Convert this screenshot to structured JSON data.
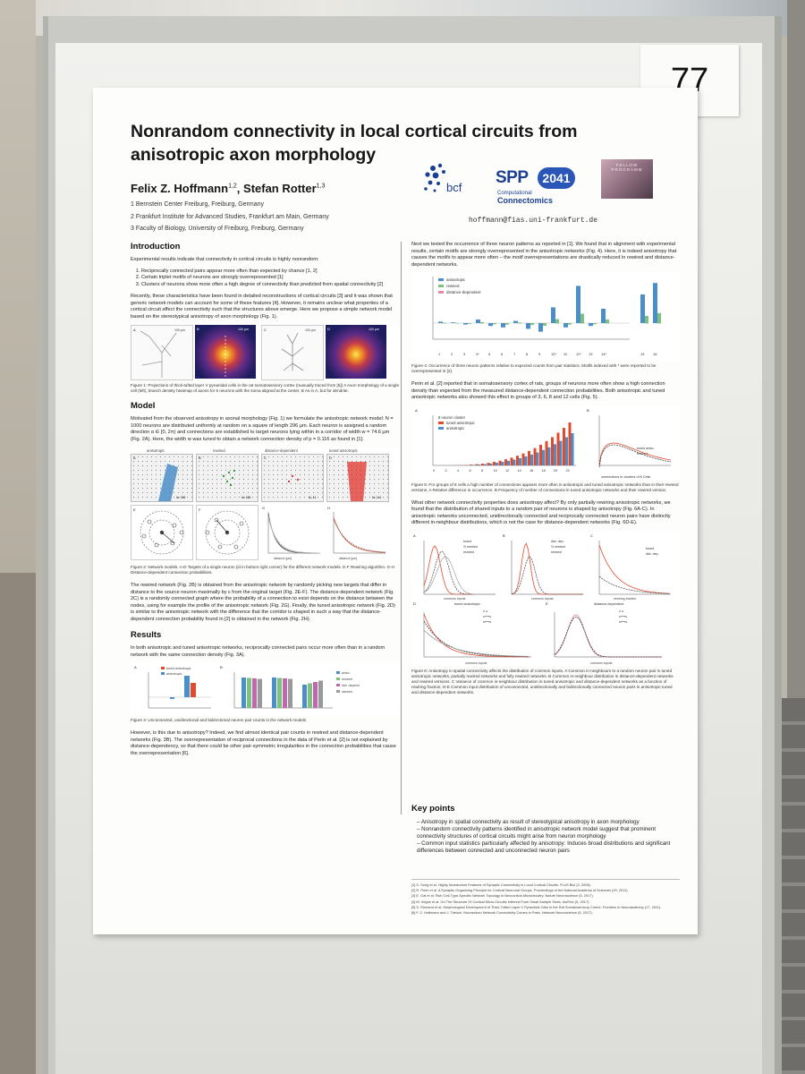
{
  "booth_number": "77",
  "poster": {
    "title": "Nonrandom connectivity in local cortical circuits from anisotropic axon morphology",
    "authors": "Felix Z. Hoffmann",
    "authors_sup1": "1,2",
    "authors_sep": ", Stefan Rotter",
    "authors_sup2": "1,3",
    "affiliations": [
      "1 Bernstein Center Freiburg, Freiburg, Germany",
      "2 Frankfurt Institute for Advanced Studies, Frankfurt am Main, Germany",
      "3 Faculty of Biology, University of Freiburg, Freiburg, Germany"
    ],
    "email": "hoffmann@fias.uni-frankfurt.de",
    "logos": {
      "bcf": "bcf",
      "spp_mark": "SPP",
      "spp_year": "2041",
      "spp_sub1": "Computational",
      "spp_sub2": "Connectomics",
      "fellow": "FELLOW PROGRAMM"
    }
  },
  "intro": {
    "heading": "Introduction",
    "lead": "Experimental results indicate that connectivity in cortical circuits is highly nonrandom:",
    "items": [
      "Reciprocally connected pairs appear more often than expected by chance [1, 2]",
      "Certain triplet motifs of neurons are strongly overrepresented [1]",
      "Clusters of neurons show more often a high degree of connectivity than predicted from spatial connectivity [2]"
    ],
    "body": "Recently, these characteristics have been found in detailed reconstructions of cortical circuits [3] and it was shown that generic network models can account for some of these features [4]. However, it remains unclear what properties of a cortical circuit affect the connectivity such that the structures above emerge. Here we propose a simple network model based on the stereotypical anisotropy of axon morphology (Fig. 1).",
    "fig1_labels": [
      "A",
      "B",
      "C",
      "D"
    ],
    "fig1_scale": "100 µm",
    "fig1_caption": "Figure 1: Projections of thick-tufted layer V pyramidal cells in the rat somatosensory cortex (manually traced from [5]) A Axon morphology of a single cell (left), branch density heatmap of axons for 5 neurons with the soma aligned at the center. B As in A, but for dendrite."
  },
  "model": {
    "heading": "Model",
    "body": "Motivated from the observed anisotropy in axonal morphology (Fig. 1) we formulate the anisotropic network model: N = 1000 neurons are distributed uniformly at random on a square of length 296 µm. Each neuron is assigned a random direction α ∈ [0, 2π) and connections are established to target neurons lying within in a corridor of width w = 74.6 µm (Fig. 2A). Here, the width w was tuned to obtain a network connection density of p = 0.116 as found in [1].",
    "fig2_titles": [
      "anisotropic",
      "rewired",
      "distance-dependent",
      "tuned anisotropic"
    ],
    "fig2_letters": [
      "A",
      "B",
      "C",
      "D",
      "E",
      "F",
      "G",
      "H"
    ],
    "fig2_counts": [
      "№ 158",
      "№ 158",
      "№ 14",
      "№ 144"
    ],
    "fig2_legend_g": [
      "anisotropic",
      "rewired",
      "dist.-dep."
    ],
    "fig2_legend_h": [
      "tuned aniso.",
      "Perin et al."
    ],
    "fig2_xlabel": "distance [µm]",
    "fig2_caption": "Figure 2: Network models. A-D Targets of a single neuron (id in bottom right corner) for the different network models. E-F Rewiring algorithm. G-H Distance-dependent connection probabilities.",
    "body2": "The rewired network (Fig. 2B) is obtained from the anisotropic network by randomly picking new targets that differ in distance to the source neuron maximally by ε from the original target (Fig. 2E-F). The distance-dependent network (Fig. 2C) is a randomly connected graph where the probability of a connection to exist depends on the distance between the nodes, using for example the profile of the anisotropic network (Fig. 2G). Finally, the tuned anisotropic network (Fig. 2D) is similar to the anisotropic network with the difference that the corridor is shaped in such a way that the distance-dependent connection probability found in [2] is obtained in the network (Fig. 2H)."
  },
  "results": {
    "heading": "Results",
    "body": "In both anisotropic and tuned anisotropic networks, reciprocally connected pairs occur more often than in a random network with the same connection density (Fig. 3A).",
    "fig3_legend_a": [
      "tuned anisotropic",
      "anisotropic"
    ],
    "fig3_legend_b": [
      "aniso.",
      "rewired",
      "dist. depend.",
      "random"
    ],
    "fig3_ylabel_a": "counts in aniso. net relative to random",
    "fig3_ylabel_b": "relative occurrence of connected pairs",
    "fig3_caption": "Figure 3: Unconnected, unidirectional and bidirectional neuron pair counts in the network models",
    "body2": "However, is this due to anisotropy? Indeed, we find almost identical pair counts in rewired and distance-dependent networks (Fig. 3B). The overrepresentation of reciprocal connections in the data of Perin et al. [2] is not explained by distance-dependency, so that there could be other pair-symmetric irregularities in the connection probabilities that cause the overrepresentation [6]."
  },
  "motifs": {
    "body": "Next we tested the occurrence of three neuron patterns as reported in [1]. We found that in alignment with experimental results, certain motifs are strongly overrepresented in the anisotropic networks (Fig. 4). Here, it is indeed anisotropy that causes the motifs to appear more often – the motif overrepresentations are drastically reduced in rewired and distance-dependent networks.",
    "fig4_legend": [
      "anisotropic",
      "rewired",
      "distance-dependent"
    ],
    "fig4_ylabel": "observed counts / expected counts",
    "fig4_xticks": [
      "1",
      "2",
      "3",
      "4*",
      "5",
      "6",
      "7",
      "8",
      "9",
      "10*",
      "11",
      "12*",
      "13",
      "14*",
      "15",
      "16"
    ],
    "fig4_caption": "Figure 4: Occurrence of three neuron patterns relative to expected counts from pair statistics. Motifs indexed with * were reported to be overrepresented in [2].",
    "body2": "Perin et al. [2] reported that in somatosensory cortex of rats, groups of neurons more often show a high connection density than expected from the measured distance-dependent connection probabilities. Both anisotropic and tuned anisotropic networks also showed this effect in groups of 3, 6, 8 and 12 cells (Fig. 5).",
    "fig5_title": "8 neuron cluster",
    "fig5_legend": [
      "tuned anisotropic",
      "anisotropic"
    ],
    "fig5_legend_b": [
      "tuned aniso.",
      "rewired"
    ],
    "fig5_xticks": [
      "0",
      "2",
      "4",
      "6",
      "8",
      "10",
      "12",
      "14",
      "16",
      "18",
      "20",
      "22"
    ],
    "fig5_ylabel": "counts – rewired counts / rewired counts",
    "fig5_ylabel_b": "relative frequency",
    "fig5_xlabel_b": "connections in clusters of 8 Cells",
    "fig5_caption": "Figure 5: For groups of 8 cells a high number of connections appears more often in anisotropic and tuned anisotropic networks than in their rewired versions. A Relative difference in occurrence. B Frequency of number of connections in tuned anisotropic networks and their rewired version.",
    "body3": "What other network connectivity properties does anisotropy affect? By only partially rewiring anisotropic networks, we found that the distribution of shared inputs to a random pair of neurons is shaped by anisotropy (Fig. 6A-C). In anisotropic networks unconnected, unidirectionally connected and reciprocally connected neuron pairs have distinctly different in-neighbour distributions, which is not the case for distance-dependent networks (Fig. 6D-E).",
    "fig6_legend_a": [
      "tuned",
      "½ rewired",
      "rewired"
    ],
    "fig6_legend_b": [
      "dist. dep.",
      "½ rewired",
      "rewired"
    ],
    "fig6_legend_c": [
      "tuned",
      "dist. dep."
    ],
    "fig6_title_d": "tuned anisotropic",
    "fig6_title_e": "distance-dependent",
    "fig6_legend_d": [
      "o  o",
      "o⟶o",
      "o⟷o"
    ],
    "fig6_xlabel": "common inputs",
    "fig6_xlabel_c": "rewiring fraction",
    "fig6_ylabel": "probability density",
    "fig6_ylabel_c": "variance of common input distribution",
    "fig6_caption": "Figure 6: Anisotropy in spatial connectivity affects the distribution of common inputs. A Common in-neighbours to a random neuron pair in tuned anisotropic networks, partially rewired networks and fully rewired networks. B Common in-neighbour distribution in distance-dependent networks and rewired versions. C Variance of common in-neighbour distribution in tuned anisotropic and distance-dependent networks as a function of rewiring fraction. D-E Common input distribution of unconnected, unidirectionally and bidirectionally connected neuron pairs in anisotropic tuned and distance-dependent networks."
  },
  "keypoints": {
    "heading": "Key points",
    "items": [
      "Anisotropy in spatial connectivity as result of stereotypical anisotropy in axon morphology",
      "Nonrandom connectivity patterns identified in anisotropic network model suggest that prominent connectivity structures of cortical circuits might arise from neuron morphology",
      "Common input statistics particularly affected by anisotropy: Induces broad distributions and significant differences between connected and unconnected neuron pairs"
    ]
  },
  "references": [
    "[1] S. Song et al. Highly Nonrandom Features of Synaptic Connectivity in Local Cortical Circuits. PLoS Biol (3, 2005).",
    "[2] R. Perin et al. A Synaptic Organizing Principle for Cortical Neuronal Groups. Proceedings of the National Academy of Sciences (29, 2011).",
    "[3] E. Gal et al. Rich Cell-Type-Specific Network Topology in Neocortical Microcircuitry. Nature Neuroscience (5, 2017).",
    "[4] M. Vegue et al. On The Structure Of Cortical Micro-Circuits Inferred From Small Sample Sizes. bioRxiv (5, 2017).",
    "[5] S. Romand et al. Morphological Development of Thick-Tufted Layer V Pyramidal Cells in the Rat Somatosensory Cortex. Frontiers in Neuroanatomy (17, 2011).",
    "[6] F. Z. Hoffmann and J. Triesch. Nonrandom Network Connectivity Comes in Pairs. Network Neuroscience (5, 2017)."
  ],
  "colors": {
    "aniso_blue": "#4c8fc8",
    "rewired_green": "#7cc27c",
    "dist_pink": "#e58aa2",
    "tuned_red": "#e24a2e",
    "spp_blue": "#1c3f92"
  }
}
